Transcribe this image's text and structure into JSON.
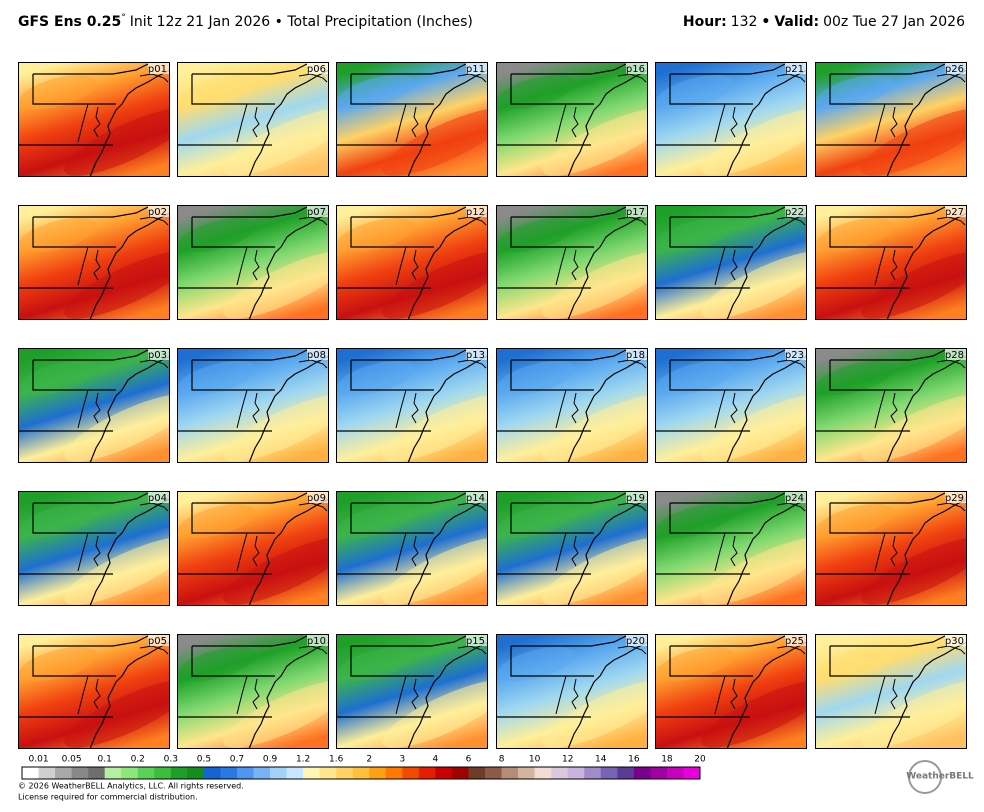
{
  "header": {
    "model": "GFS Ens 0.25",
    "degree": "°",
    "description": "Init 12z 21 Jan 2026 • Total Precipitation (Inches)",
    "hour_label": "Hour:",
    "hour": "132",
    "separator": "•",
    "valid_label": "Valid:",
    "valid": "00z Tue 27 Jan 2026"
  },
  "panels": [
    "p01",
    "p06",
    "p11",
    "p16",
    "p21",
    "p26",
    "p02",
    "p07",
    "p12",
    "p17",
    "p22",
    "p27",
    "p03",
    "p08",
    "p13",
    "p18",
    "p23",
    "p28",
    "p04",
    "p09",
    "p14",
    "p19",
    "p24",
    "p29",
    "p05",
    "p10",
    "p15",
    "p20",
    "p25",
    "p30"
  ],
  "colorbar": {
    "labels": [
      "0.01",
      "0.05",
      "0.1",
      "0.2",
      "0.3",
      "0.5",
      "0.7",
      "0.9",
      "1.2",
      "1.6",
      "2",
      "3",
      "4",
      "6",
      "8",
      "10",
      "12",
      "14",
      "16",
      "18",
      "20"
    ],
    "colors": [
      "#ffffff",
      "#d0d0d0",
      "#a8a8a8",
      "#888888",
      "#6e6e6e",
      "#b4f0a0",
      "#8ce678",
      "#5ad25a",
      "#3cbe3c",
      "#1ea028",
      "#148c1e",
      "#1464d2",
      "#2878e6",
      "#5096f0",
      "#78b4f5",
      "#a0d2fa",
      "#c8e6ff",
      "#fff5b4",
      "#ffe68c",
      "#ffd264",
      "#ffbe3c",
      "#ffa014",
      "#ff7800",
      "#f04b00",
      "#e61e00",
      "#c80000",
      "#a00000",
      "#6e3c28",
      "#8c5a46",
      "#b48c78",
      "#d2b4a0",
      "#f0dcd2",
      "#dcc8dc",
      "#c8b4dc",
      "#a08cc8",
      "#7864b4",
      "#5a3c96",
      "#78008c",
      "#a000a0",
      "#c800be",
      "#e600dc"
    ]
  },
  "footer": {
    "copyright": "© 2026 WeatherBELL Analytics, LLC. All rights reserved.",
    "license": "License required for commercial distribution.",
    "logo": "WeatherBELL"
  }
}
